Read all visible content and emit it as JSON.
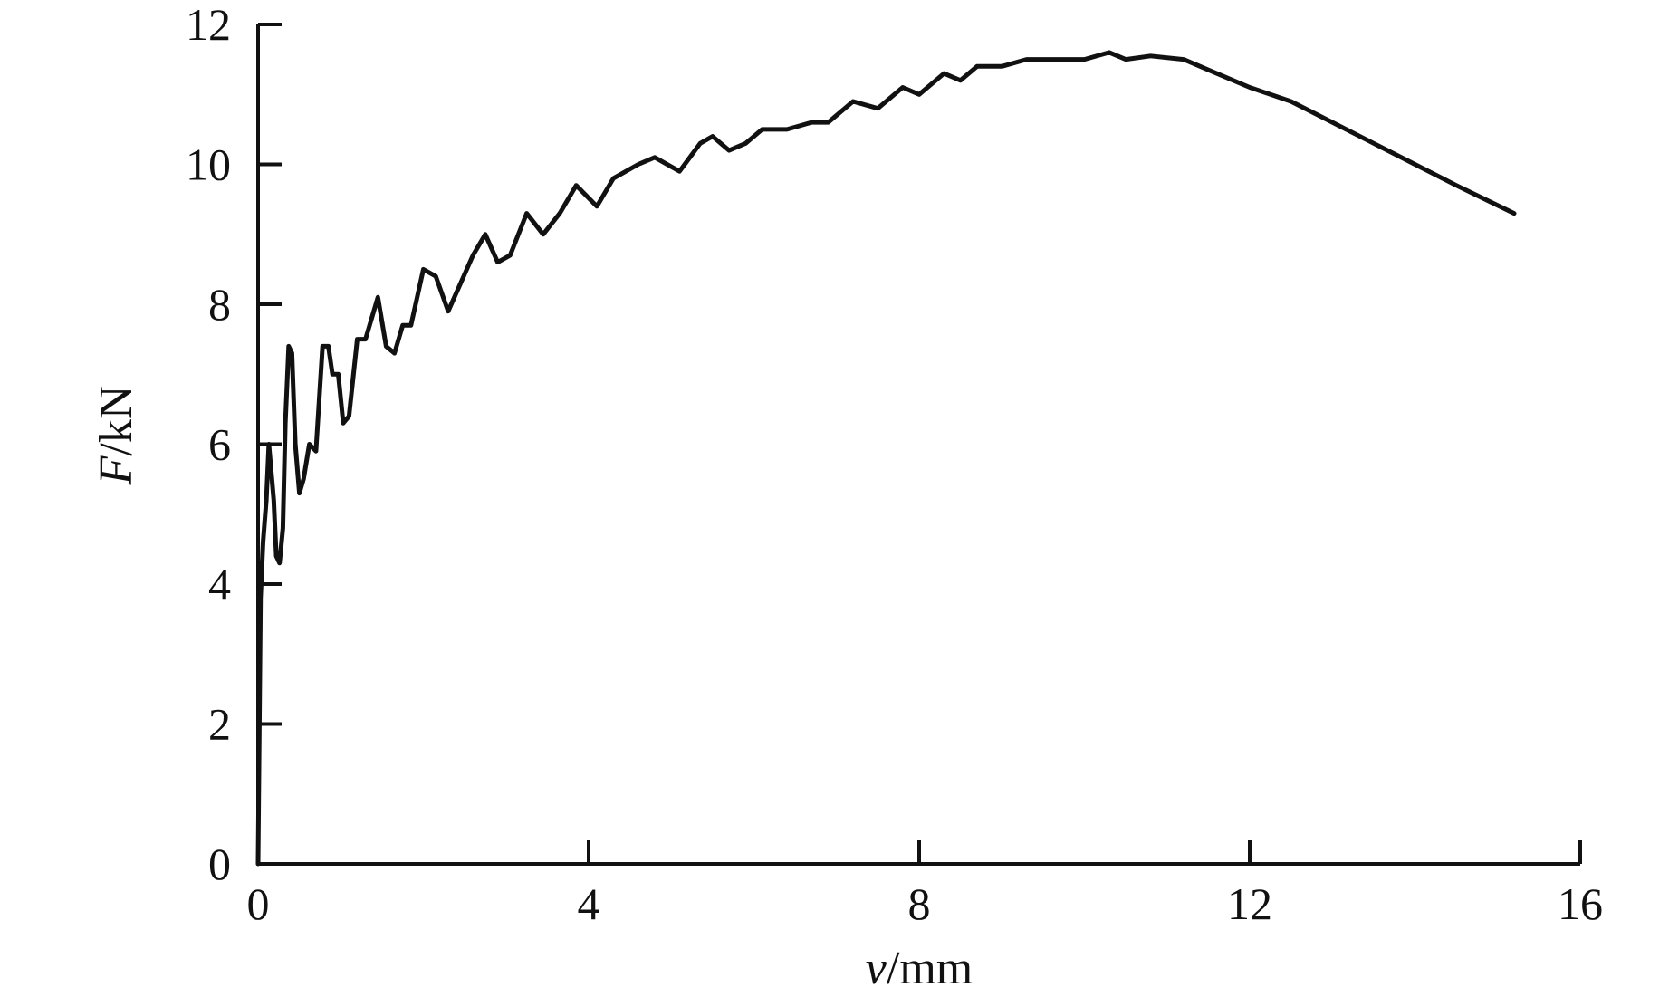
{
  "chart_data": {
    "type": "line",
    "xlabel_var": "v",
    "xlabel_unit": "/mm",
    "ylabel_var": "F",
    "ylabel_unit": "/kN",
    "xlim": [
      0,
      16
    ],
    "ylim": [
      0,
      12
    ],
    "xticks": [
      0,
      4,
      8,
      12,
      16
    ],
    "yticks": [
      0,
      2,
      4,
      6,
      8,
      10,
      12
    ],
    "xtick_labels": [
      "0",
      "4",
      "8",
      "12",
      "16"
    ],
    "ytick_labels": [
      "0",
      "2",
      "4",
      "6",
      "8",
      "10",
      "12"
    ],
    "grid": false,
    "series": [
      {
        "color": "#111111",
        "points": [
          [
            0.0,
            0.0
          ],
          [
            0.03,
            3.8
          ],
          [
            0.06,
            4.6
          ],
          [
            0.1,
            5.2
          ],
          [
            0.13,
            6.0
          ],
          [
            0.16,
            5.6
          ],
          [
            0.19,
            5.2
          ],
          [
            0.22,
            4.4
          ],
          [
            0.26,
            4.3
          ],
          [
            0.3,
            4.8
          ],
          [
            0.33,
            6.3
          ],
          [
            0.37,
            7.4
          ],
          [
            0.41,
            7.3
          ],
          [
            0.45,
            6.0
          ],
          [
            0.5,
            5.3
          ],
          [
            0.55,
            5.5
          ],
          [
            0.62,
            6.0
          ],
          [
            0.7,
            5.9
          ],
          [
            0.78,
            7.4
          ],
          [
            0.85,
            7.4
          ],
          [
            0.9,
            7.0
          ],
          [
            0.97,
            7.0
          ],
          [
            1.03,
            6.3
          ],
          [
            1.1,
            6.4
          ],
          [
            1.2,
            7.5
          ],
          [
            1.3,
            7.5
          ],
          [
            1.45,
            8.1
          ],
          [
            1.55,
            7.4
          ],
          [
            1.65,
            7.3
          ],
          [
            1.75,
            7.7
          ],
          [
            1.85,
            7.7
          ],
          [
            2.0,
            8.5
          ],
          [
            2.15,
            8.4
          ],
          [
            2.3,
            7.9
          ],
          [
            2.45,
            8.3
          ],
          [
            2.6,
            8.7
          ],
          [
            2.75,
            9.0
          ],
          [
            2.9,
            8.6
          ],
          [
            3.05,
            8.7
          ],
          [
            3.25,
            9.3
          ],
          [
            3.45,
            9.0
          ],
          [
            3.65,
            9.3
          ],
          [
            3.85,
            9.7
          ],
          [
            4.1,
            9.4
          ],
          [
            4.3,
            9.8
          ],
          [
            4.6,
            10.0
          ],
          [
            4.8,
            10.1
          ],
          [
            5.1,
            9.9
          ],
          [
            5.35,
            10.3
          ],
          [
            5.5,
            10.4
          ],
          [
            5.7,
            10.2
          ],
          [
            5.9,
            10.3
          ],
          [
            6.1,
            10.5
          ],
          [
            6.4,
            10.5
          ],
          [
            6.7,
            10.6
          ],
          [
            6.9,
            10.6
          ],
          [
            7.2,
            10.9
          ],
          [
            7.5,
            10.8
          ],
          [
            7.8,
            11.1
          ],
          [
            8.0,
            11.0
          ],
          [
            8.3,
            11.3
          ],
          [
            8.5,
            11.2
          ],
          [
            8.7,
            11.4
          ],
          [
            9.0,
            11.4
          ],
          [
            9.3,
            11.5
          ],
          [
            9.7,
            11.5
          ],
          [
            10.0,
            11.5
          ],
          [
            10.3,
            11.6
          ],
          [
            10.5,
            11.5
          ],
          [
            10.8,
            11.55
          ],
          [
            11.2,
            11.5
          ],
          [
            11.6,
            11.3
          ],
          [
            12.0,
            11.1
          ],
          [
            12.5,
            10.9
          ],
          [
            13.0,
            10.6
          ],
          [
            13.5,
            10.3
          ],
          [
            14.0,
            10.0
          ],
          [
            14.5,
            9.7
          ],
          [
            15.2,
            9.3
          ]
        ]
      }
    ]
  }
}
